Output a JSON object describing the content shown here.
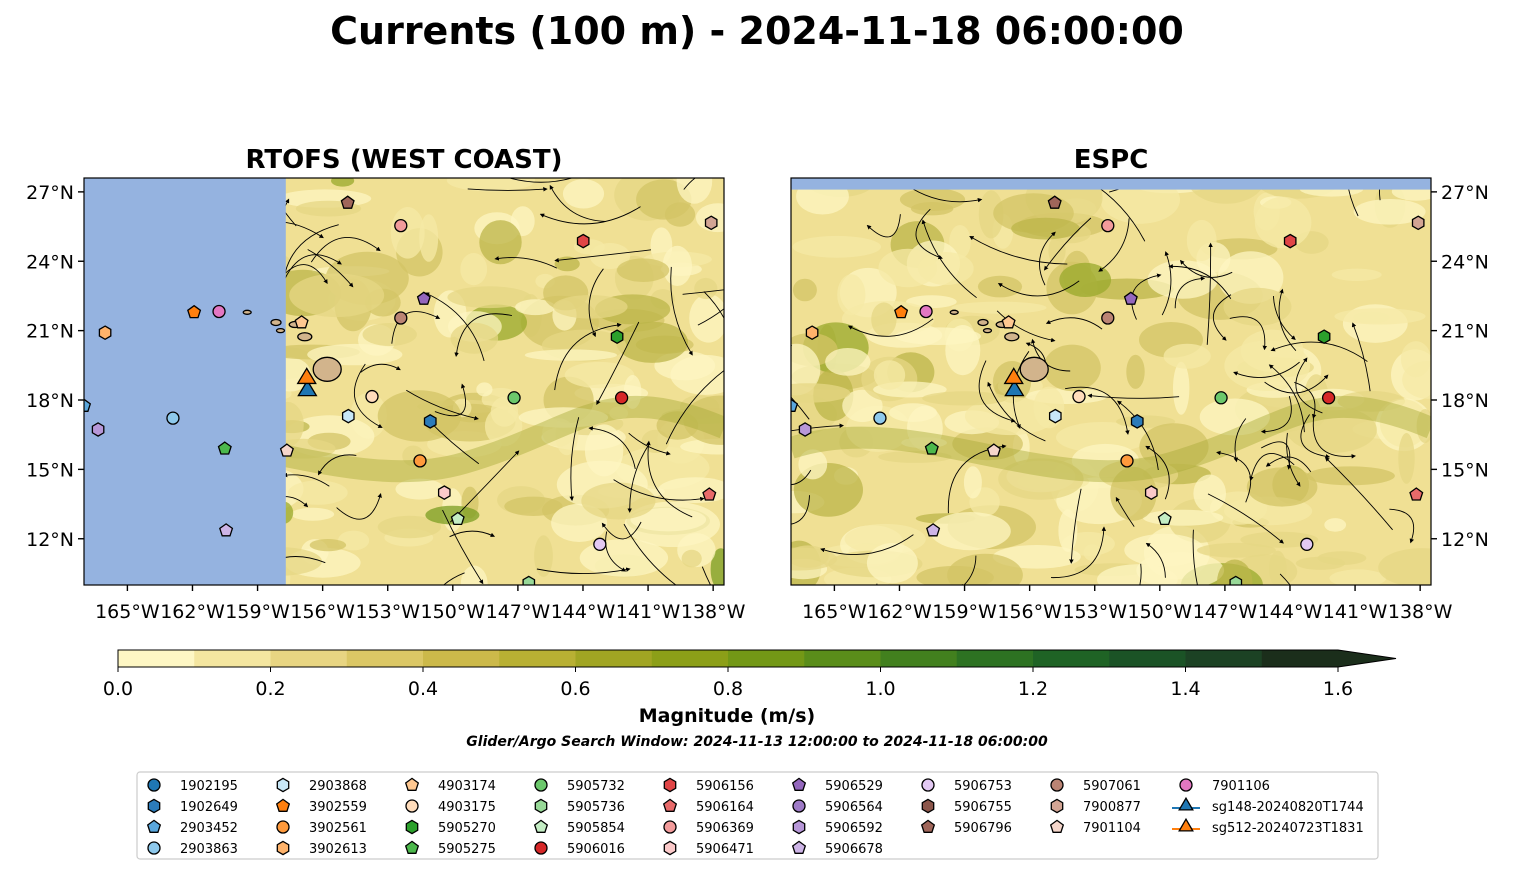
{
  "title": "Currents (100 m) - 2024-11-18 06:00:00",
  "colors": {
    "land": "#95b3e0",
    "island": "#d2b48c",
    "streamline": "#000000",
    "background_low": "#fdf6c1",
    "background_mid": "#d9c973"
  },
  "chart_data": [
    {
      "type": "map",
      "title": "RTOFS (WEST COAST)",
      "xlabel": "",
      "ylabel": "",
      "xlim": [
        -167,
        -137.5
      ],
      "ylim": [
        10,
        27.6
      ],
      "x_ticks": [
        "165°W",
        "162°W",
        "159°W",
        "156°W",
        "153°W",
        "150°W",
        "147°W",
        "144°W",
        "141°W",
        "138°W"
      ],
      "y_ticks": [
        "27°N",
        "24°N",
        "21°N",
        "18°N",
        "15°N",
        "12°N"
      ],
      "y_tick_side": "left",
      "no_data_west_of": -157.7,
      "grid": false
    },
    {
      "type": "map",
      "title": "ESPC",
      "xlabel": "",
      "ylabel": "",
      "xlim": [
        -167,
        -137.5
      ],
      "ylim": [
        10,
        27.6
      ],
      "x_ticks": [
        "165°W",
        "162°W",
        "159°W",
        "156°W",
        "153°W",
        "150°W",
        "147°W",
        "144°W",
        "141°W",
        "138°W"
      ],
      "y_ticks": [
        "27°N",
        "24°N",
        "21°N",
        "18°N",
        "15°N",
        "12°N"
      ],
      "y_tick_side": "right",
      "no_data_north_of": 27.1,
      "grid": false
    }
  ],
  "colorbar": {
    "label": "Magnitude (m/s)",
    "min": 0.0,
    "max": 1.6,
    "extend": "max",
    "ticks": [
      "0.0",
      "0.2",
      "0.4",
      "0.6",
      "0.8",
      "1.0",
      "1.2",
      "1.4",
      "1.6"
    ],
    "bins": 16
  },
  "search_window": "Glider/Argo Search Window: 2024-11-13 12:00:00 to 2024-11-18 06:00:00",
  "legend": {
    "columns": [
      [
        {
          "label": "1902195",
          "marker": "circle",
          "color": "#1f77b4"
        },
        {
          "label": "1902649",
          "marker": "hexagon",
          "color": "#2b7bba"
        },
        {
          "label": "2903452",
          "marker": "pentagon",
          "color": "#5aa7dd"
        },
        {
          "label": "2903863",
          "marker": "circle",
          "color": "#8ec9ec"
        }
      ],
      [
        {
          "label": "2903868",
          "marker": "hexagon",
          "color": "#c7e7f7"
        },
        {
          "label": "3902559",
          "marker": "pentagon",
          "color": "#ff7f0e"
        },
        {
          "label": "3902561",
          "marker": "circle",
          "color": "#ff9a3c"
        },
        {
          "label": "3902613",
          "marker": "hexagon",
          "color": "#ffb36b"
        }
      ],
      [
        {
          "label": "4903174",
          "marker": "pentagon",
          "color": "#ffc891"
        },
        {
          "label": "4903175",
          "marker": "circle",
          "color": "#ffdcbb"
        },
        {
          "label": "5905270",
          "marker": "hexagon",
          "color": "#2ca02c"
        },
        {
          "label": "5905275",
          "marker": "pentagon",
          "color": "#4cb84c"
        }
      ],
      [
        {
          "label": "5905732",
          "marker": "circle",
          "color": "#6cc86c"
        },
        {
          "label": "5905736",
          "marker": "hexagon",
          "color": "#98d998"
        },
        {
          "label": "5905854",
          "marker": "pentagon",
          "color": "#c4edc4"
        },
        {
          "label": "5906016",
          "marker": "circle",
          "color": "#d62728"
        }
      ],
      [
        {
          "label": "5906156",
          "marker": "hexagon",
          "color": "#e04546"
        },
        {
          "label": "5906164",
          "marker": "pentagon",
          "color": "#e86a6a"
        },
        {
          "label": "5906369",
          "marker": "circle",
          "color": "#f29b9b"
        },
        {
          "label": "5906471",
          "marker": "hexagon",
          "color": "#fbc9c9"
        }
      ],
      [
        {
          "label": "5906529",
          "marker": "pentagon",
          "color": "#9467bd"
        },
        {
          "label": "5906564",
          "marker": "circle",
          "color": "#9f7bc7"
        },
        {
          "label": "5906592",
          "marker": "hexagon",
          "color": "#b797d8"
        },
        {
          "label": "5906678",
          "marker": "pentagon",
          "color": "#cdb4e6"
        }
      ],
      [
        {
          "label": "5906753",
          "marker": "circle",
          "color": "#e3c9f3"
        },
        {
          "label": "5906755",
          "marker": "hexagon",
          "color": "#8c564b"
        },
        {
          "label": "5906796",
          "marker": "pentagon",
          "color": "#a0665a"
        }
      ],
      [
        {
          "label": "5907061",
          "marker": "circle",
          "color": "#bb8474"
        },
        {
          "label": "7900877",
          "marker": "hexagon",
          "color": "#d3a594"
        },
        {
          "label": "7901104",
          "marker": "pentagon",
          "color": "#f5d6cb"
        }
      ],
      [
        {
          "label": "7901106",
          "marker": "circle",
          "color": "#e377c2"
        },
        {
          "label": "sg148-20240820T1744",
          "marker": "triangle-line",
          "color": "#1f77b4"
        },
        {
          "label": "sg512-20240723T1831",
          "marker": "triangle-line",
          "color": "#ff7f0e"
        }
      ]
    ]
  }
}
